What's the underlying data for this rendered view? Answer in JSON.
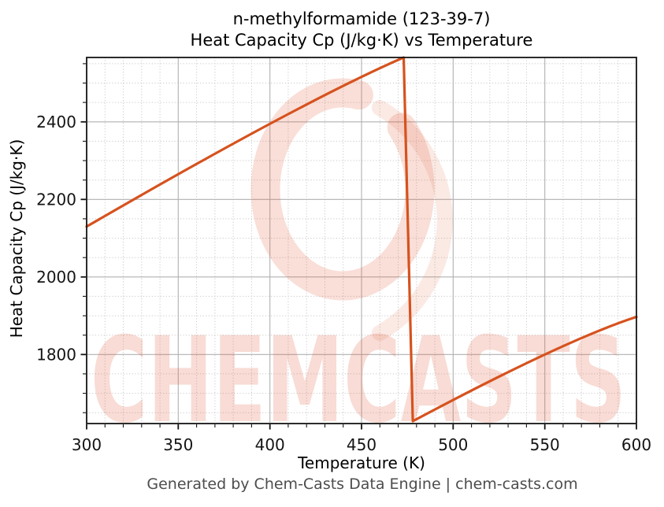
{
  "header": {
    "title_line1": "n-methylformamide (123-39-7)",
    "title_line2": "Heat Capacity Cp (J/kg·K) vs Temperature"
  },
  "footer": {
    "text": "Generated by Chem-Casts Data Engine | chem-casts.com"
  },
  "watermark": {
    "text": "CHEMCASTS",
    "logo": "chemcasts-ring-logo",
    "color": "#e0613e"
  },
  "colors": {
    "line": "#d6521e",
    "grid_major": "#b0b0b0",
    "grid_minor": "#c9c9c9",
    "axis": "#141414",
    "tick_label": "#141414",
    "footer_text": "#4d4d4d"
  },
  "chart_data": {
    "type": "line",
    "title": "n-methylformamide (123-39-7) — Heat Capacity Cp (J/kg·K) vs Temperature",
    "xlabel": "Temperature (K)",
    "ylabel": "Heat Capacity Cp (J/kg·K)",
    "xlim": [
      300,
      600
    ],
    "ylim": [
      1622,
      2566
    ],
    "x_ticks": [
      300,
      350,
      400,
      450,
      500,
      550,
      600
    ],
    "y_ticks": [
      1800,
      2000,
      2200,
      2400
    ],
    "x_minor_step": 10,
    "y_minor_step": 50,
    "grid": "major-solid + minor-dotted",
    "legend": "none",
    "line_color": "#d6521e",
    "series": [
      {
        "name": "Heat Capacity Cp",
        "segments": [
          {
            "shape": "quad",
            "phase": "liquid",
            "points": [
              [
                300,
                2130
              ],
              [
                402,
                2400
              ],
              [
                473,
                2566
              ]
            ]
          },
          {
            "shape": "line",
            "phase": "transition-drop",
            "points": [
              [
                473,
                2566
              ],
              [
                478,
                1628
              ]
            ]
          },
          {
            "shape": "quad",
            "phase": "gas",
            "points": [
              [
                478,
                1628
              ],
              [
                550,
                1800
              ],
              [
                600,
                1897
              ]
            ]
          }
        ]
      }
    ]
  }
}
